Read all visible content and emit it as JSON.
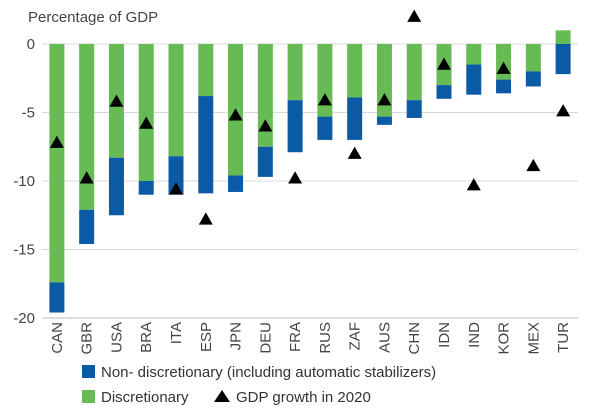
{
  "chart_data": {
    "type": "bar",
    "ylabel": "Percentage of GDP",
    "ylim": [
      -20,
      2
    ],
    "yticks": [
      0,
      -5,
      -10,
      -15,
      -20
    ],
    "categories": [
      "CAN",
      "GBR",
      "USA",
      "BRA",
      "ITA",
      "ESP",
      "JPN",
      "DEU",
      "FRA",
      "RUS",
      "ZAF",
      "AUS",
      "CHN",
      "IDN",
      "IND",
      "KOR",
      "MEX",
      "TUR"
    ],
    "series": [
      {
        "name": "Non- discretionary (including automatic stabilizers)",
        "color": "#0b5aa6",
        "values": [
          -2.2,
          -2.5,
          -4.2,
          -1.0,
          -2.8,
          -7.1,
          -1.2,
          -2.2,
          -3.8,
          -1.7,
          -3.1,
          -0.6,
          -1.3,
          -1.0,
          -2.2,
          -1.0,
          -1.1,
          -2.2
        ]
      },
      {
        "name": "Discretionary",
        "color": "#66bb55",
        "values": [
          -17.4,
          -12.1,
          -8.3,
          -10.0,
          -8.2,
          -3.8,
          -9.6,
          -7.5,
          -4.1,
          -5.3,
          -3.9,
          -5.3,
          -4.1,
          -3.0,
          -1.5,
          -2.6,
          -2.0,
          1.0
        ]
      }
    ],
    "markers": {
      "name": "GDP growth in 2020",
      "color": "#000000",
      "values": [
        -7.2,
        -9.8,
        -4.2,
        -5.8,
        -10.6,
        -12.8,
        -5.2,
        -6.0,
        -9.8,
        -4.1,
        -8.0,
        -4.1,
        2.0,
        -1.5,
        -10.3,
        -1.8,
        -8.9,
        -4.9
      ]
    }
  }
}
